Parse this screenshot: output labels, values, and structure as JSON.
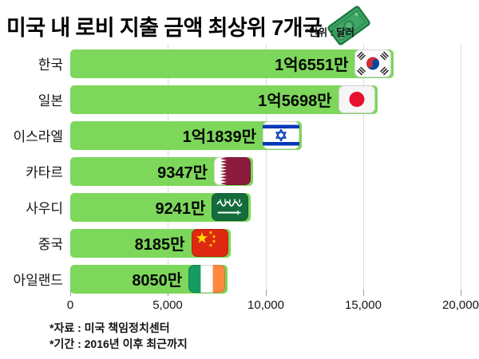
{
  "header": {
    "title": "미국 내 로비 지출 금액 최상위 7개국",
    "title_icon": "money-banknote-icon",
    "unit_note": "*단위 : 달러"
  },
  "chart_data": {
    "type": "bar",
    "orientation": "horizontal",
    "title": "미국 내 로비 지출 금액 최상위 7개국",
    "unit_note": "*단위 : 달러",
    "categories": [
      "한국",
      "일본",
      "이스라엘",
      "카타르",
      "사우디",
      "중국",
      "아일랜드"
    ],
    "values": [
      16551,
      15698,
      11839,
      9347,
      9241,
      8185,
      8050
    ],
    "value_labels": [
      "1억6551만",
      "1억5698만",
      "1억1839만",
      "9347만",
      "9241만",
      "8185만",
      "8050만"
    ],
    "flags": [
      "south-korea-flag-icon",
      "japan-flag-icon",
      "israel-flag-icon",
      "qatar-flag-icon",
      "saudi-arabia-flag-icon",
      "china-flag-icon",
      "ireland-flag-icon"
    ],
    "x_tick_labels": [
      "0",
      "5,000",
      "10,000",
      "15,000",
      "20,000"
    ],
    "xlim": [
      0,
      20000
    ],
    "grid": true,
    "legend": false,
    "bar_color": "#7cd75a"
  },
  "footer": {
    "source_line": "*자료 : 미국 책임정치센터",
    "period_line": "*기간 : 2016년 이후 최근까지"
  }
}
